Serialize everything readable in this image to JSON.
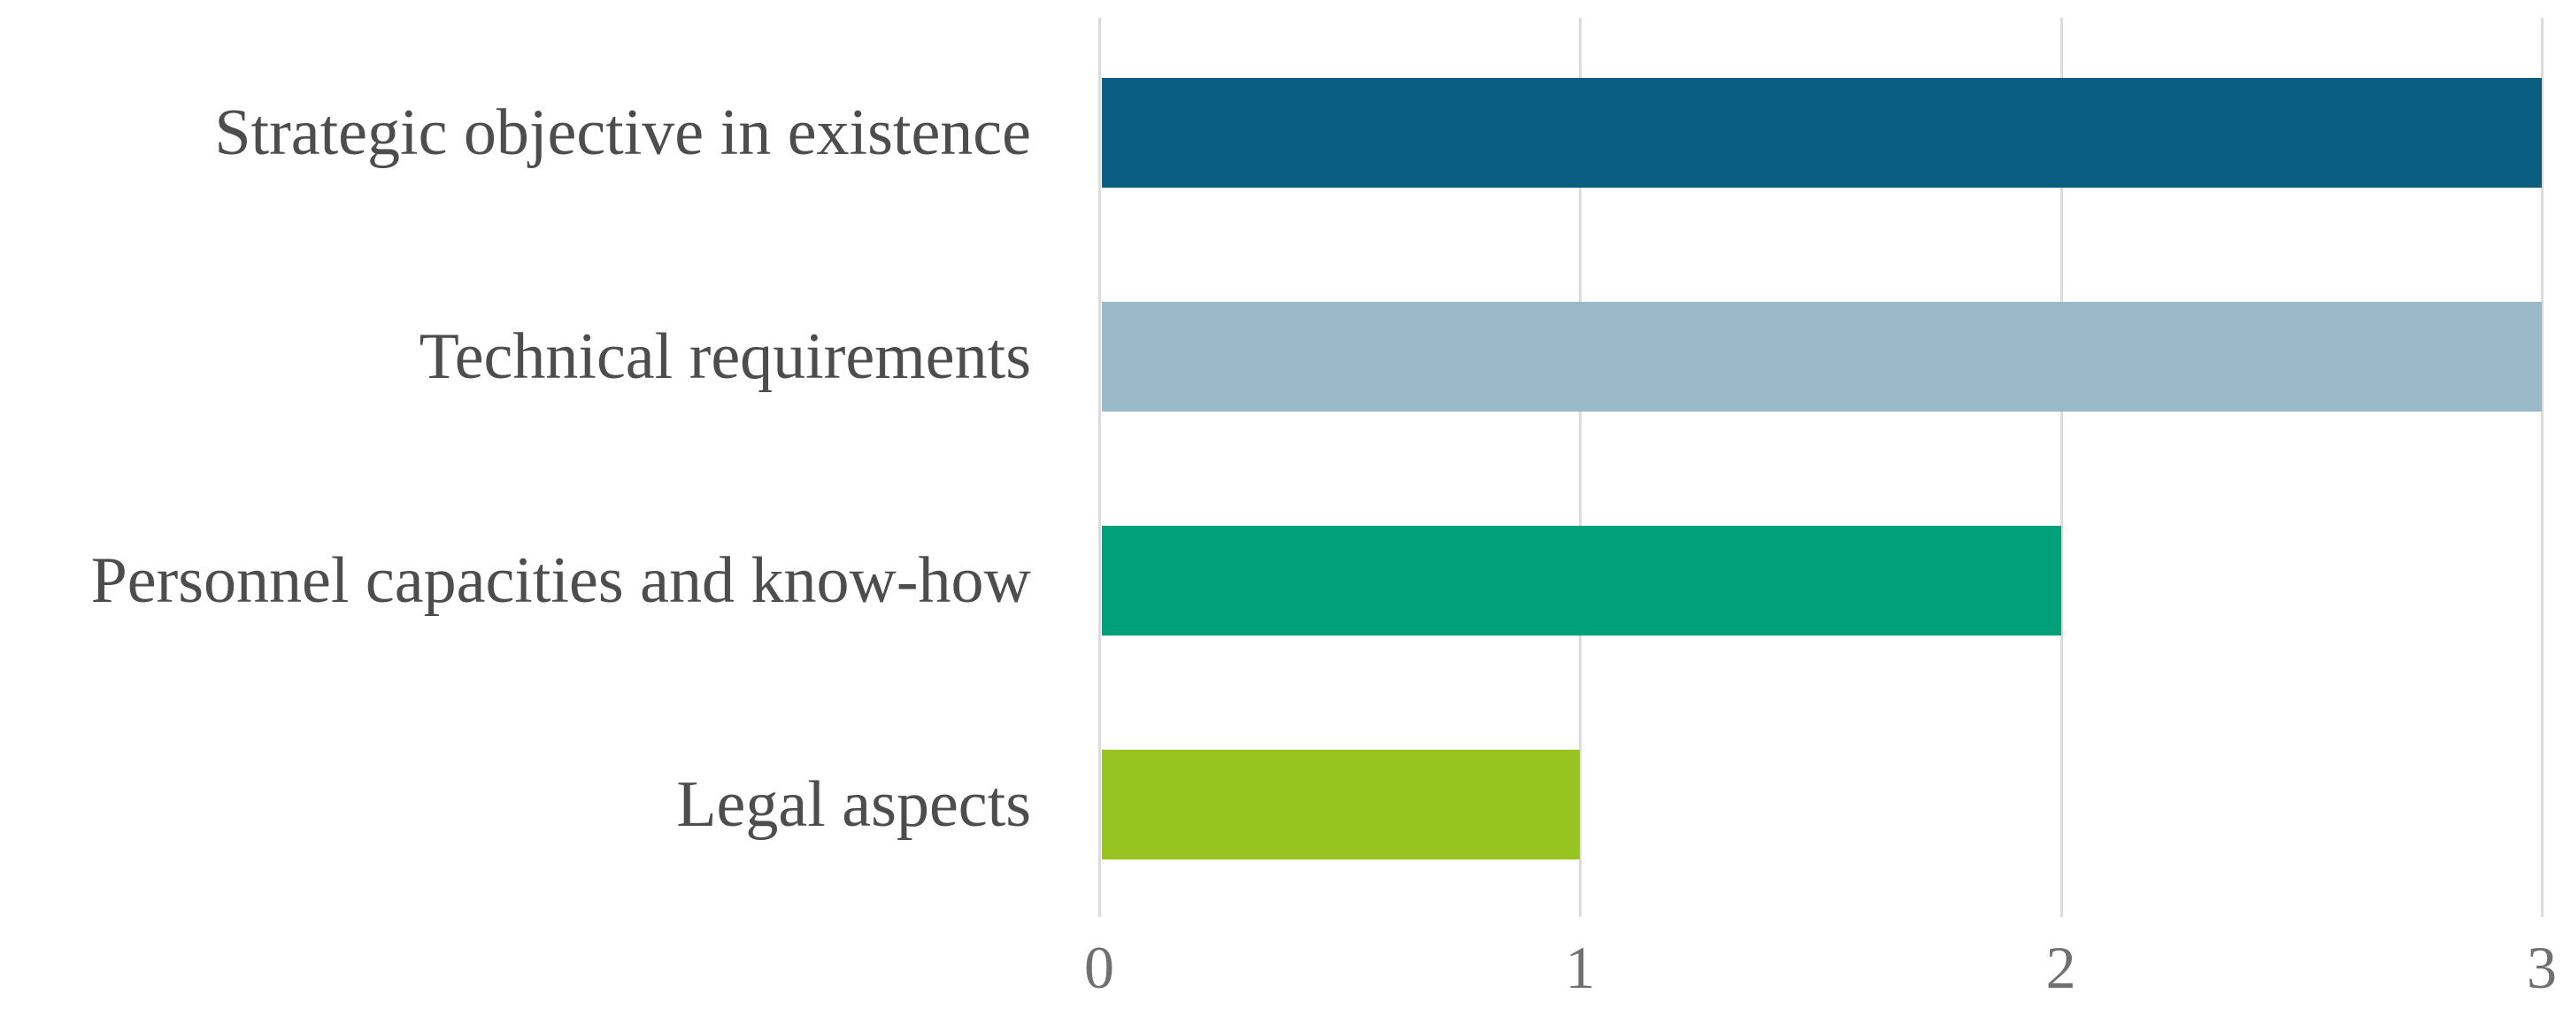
{
  "chart_data": {
    "type": "bar",
    "orientation": "horizontal",
    "title": "",
    "xlabel": "",
    "ylabel": "",
    "categories": [
      "Strategic objective in existence",
      "Technical requirements",
      "Personnel capacities and know-how",
      "Legal aspects"
    ],
    "values": [
      3,
      3,
      2,
      1
    ],
    "bar_colors": [
      "#095e82",
      "#9bbac9",
      "#00a07b",
      "#97c420"
    ],
    "xlim": [
      0,
      3
    ],
    "x_ticks": [
      0,
      1,
      2,
      3
    ],
    "grid": "vertical-gridlines-only",
    "legend": "none",
    "gridline_color": "#dcdcdc",
    "category_label_color": "#4d4d4d",
    "tick_label_color": "#707070",
    "background_color": "#ffffff"
  }
}
